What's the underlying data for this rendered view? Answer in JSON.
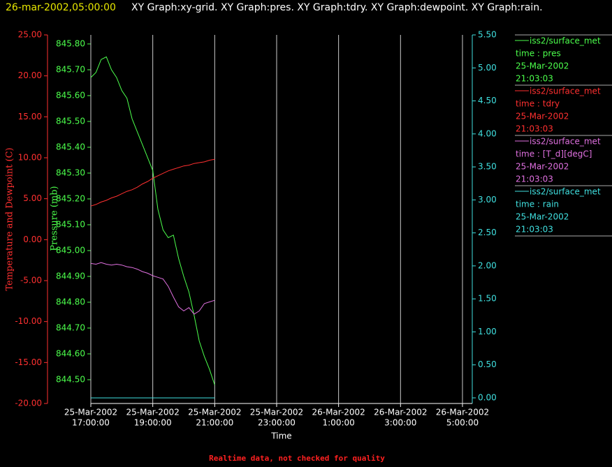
{
  "header": {
    "timestamp": "26-mar-2002,05:00:00",
    "graphs": "XY Graph:xy-grid.  XY Graph:pres.  XY Graph:tdry.  XY Graph:dewpoint.  XY Graph:rain."
  },
  "footer": "Realtime data, not checked for quality",
  "chart_data": {
    "type": "line",
    "xlabel": "Time",
    "ylabel": "Temperature and Dewpoint (C)",
    "y2label": "Pressure (mb)",
    "x": [
      "2002-03-25T17:00:00",
      "2002-03-25T17:10:00",
      "2002-03-25T17:20:00",
      "2002-03-25T17:30:00",
      "2002-03-25T17:40:00",
      "2002-03-25T17:50:00",
      "2002-03-25T18:00:00",
      "2002-03-25T18:10:00",
      "2002-03-25T18:20:00",
      "2002-03-25T18:30:00",
      "2002-03-25T18:40:00",
      "2002-03-25T18:50:00",
      "2002-03-25T19:00:00",
      "2002-03-25T19:10:00",
      "2002-03-25T19:20:00",
      "2002-03-25T19:30:00",
      "2002-03-25T19:40:00",
      "2002-03-25T19:50:00",
      "2002-03-25T20:00:00",
      "2002-03-25T20:10:00",
      "2002-03-25T20:20:00",
      "2002-03-25T20:30:00",
      "2002-03-25T20:40:00",
      "2002-03-25T20:50:00",
      "2002-03-25T21:00:00"
    ],
    "xlim": [
      "2002-03-25T17:00:00",
      "2002-03-26T05:19:00"
    ],
    "xticks": [
      {
        "value": "2002-03-25T17:00:00",
        "label": [
          "25-Mar-2002",
          "17:00:00"
        ]
      },
      {
        "value": "2002-03-25T19:00:00",
        "label": [
          "25-Mar-2002",
          "19:00:00"
        ]
      },
      {
        "value": "2002-03-25T21:00:00",
        "label": [
          "25-Mar-2002",
          "21:00:00"
        ]
      },
      {
        "value": "2002-03-25T23:00:00",
        "label": [
          "25-Mar-2002",
          "23:00:00"
        ]
      },
      {
        "value": "2002-03-26T01:00:00",
        "label": [
          "26-Mar-2002",
          "1:00:00"
        ]
      },
      {
        "value": "2002-03-26T03:00:00",
        "label": [
          "26-Mar-2002",
          "3:00:00"
        ]
      },
      {
        "value": "2002-03-26T05:00:00",
        "label": [
          "26-Mar-2002",
          "5:00:00"
        ]
      }
    ],
    "ylim": [
      -20,
      25
    ],
    "yticks": [
      {
        "value": 25,
        "label": "25.00"
      },
      {
        "value": 20,
        "label": "20.00"
      },
      {
        "value": 15,
        "label": "15.00"
      },
      {
        "value": 10,
        "label": "10.00"
      },
      {
        "value": 5,
        "label": "5.00"
      },
      {
        "value": 0,
        "label": "0.00"
      },
      {
        "value": -5,
        "label": "-5.00"
      },
      {
        "value": -10,
        "label": "-10.00"
      },
      {
        "value": -15,
        "label": "-15.00"
      },
      {
        "value": -20,
        "label": "-20.00"
      }
    ],
    "y2lim": [
      844.408,
      845.835
    ],
    "y2ticks": [
      {
        "value": 845.8,
        "label": "845.80"
      },
      {
        "value": 845.7,
        "label": "845.70"
      },
      {
        "value": 845.6,
        "label": "845.60"
      },
      {
        "value": 845.5,
        "label": "845.50"
      },
      {
        "value": 845.4,
        "label": "845.40"
      },
      {
        "value": 845.3,
        "label": "845.30"
      },
      {
        "value": 845.2,
        "label": "845.20"
      },
      {
        "value": 845.1,
        "label": "845.10"
      },
      {
        "value": 845.0,
        "label": "845.00"
      },
      {
        "value": 844.9,
        "label": "844.90"
      },
      {
        "value": 844.8,
        "label": "844.80"
      },
      {
        "value": 844.7,
        "label": "844.70"
      },
      {
        "value": 844.6,
        "label": "844.60"
      },
      {
        "value": 844.5,
        "label": "844.50"
      }
    ],
    "y3lim": [
      -0.085,
      5.5
    ],
    "y3ticks": [
      {
        "value": 5.5,
        "label": "5.50"
      },
      {
        "value": 5.0,
        "label": "5.00"
      },
      {
        "value": 4.5,
        "label": "4.50"
      },
      {
        "value": 4.0,
        "label": "4.00"
      },
      {
        "value": 3.5,
        "label": "3.50"
      },
      {
        "value": 3.0,
        "label": "3.00"
      },
      {
        "value": 2.5,
        "label": "2.50"
      },
      {
        "value": 2.0,
        "label": "2.00"
      },
      {
        "value": 1.5,
        "label": "1.50"
      },
      {
        "value": 1.0,
        "label": "1.00"
      },
      {
        "value": 0.5,
        "label": "0.50"
      },
      {
        "value": 0,
        "label": "0.00"
      }
    ],
    "legend_date": "25-Mar-2002",
    "legend_time": "21:03:03",
    "series": [
      {
        "name": "iss2/surface_met",
        "label": "time : pres",
        "color": "#4cff4c",
        "axis": "y2",
        "values": [
          845.67,
          845.69,
          845.74,
          845.75,
          845.7,
          845.67,
          845.62,
          845.59,
          845.51,
          845.46,
          845.41,
          845.36,
          845.31,
          845.16,
          845.08,
          845.05,
          845.06,
          844.97,
          844.9,
          844.84,
          844.75,
          844.65,
          844.59,
          844.54,
          844.48
        ]
      },
      {
        "name": "iss2/surface_met",
        "label": "time : tdry",
        "color": "#ff3030",
        "axis": "y",
        "values": [
          4.1,
          4.3,
          4.6,
          4.8,
          5.1,
          5.3,
          5.6,
          5.9,
          6.1,
          6.4,
          6.8,
          7.1,
          7.5,
          7.8,
          8.1,
          8.4,
          8.6,
          8.8,
          9.0,
          9.1,
          9.3,
          9.4,
          9.5,
          9.7,
          9.8
        ]
      },
      {
        "name": "iss2/surface_met",
        "label": "time : [T_d][degC]",
        "color": "#e070e0",
        "axis": "y",
        "values": [
          -2.9,
          -3.0,
          -2.8,
          -3.0,
          -3.1,
          -3.0,
          -3.1,
          -3.3,
          -3.4,
          -3.6,
          -3.9,
          -4.1,
          -4.4,
          -4.6,
          -4.8,
          -5.7,
          -7.0,
          -8.2,
          -8.7,
          -8.3,
          -9.1,
          -8.7,
          -7.8,
          -7.6,
          -7.4
        ]
      },
      {
        "name": "iss2/surface_met",
        "label": "time : rain",
        "color": "#40e0e0",
        "axis": "y3",
        "values": [
          0,
          0,
          0,
          0,
          0,
          0,
          0,
          0,
          0,
          0,
          0,
          0,
          0,
          0,
          0,
          0,
          0,
          0,
          0,
          0,
          0,
          0,
          0,
          0,
          0
        ]
      }
    ]
  }
}
